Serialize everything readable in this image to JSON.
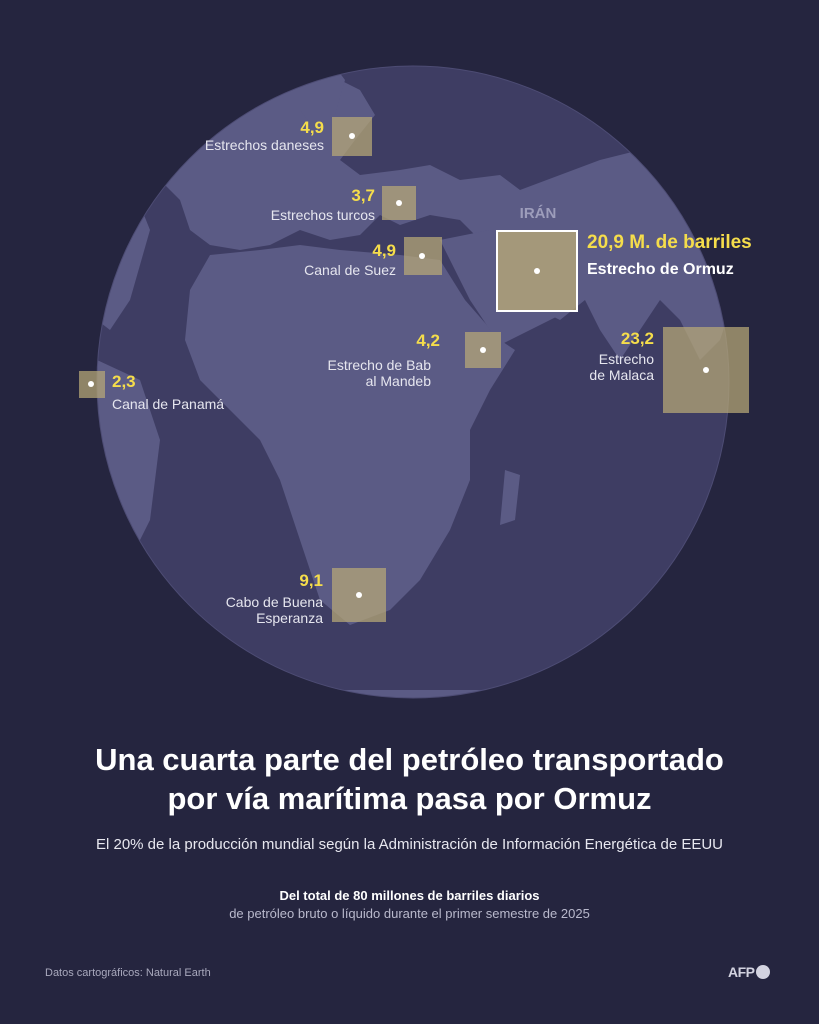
{
  "map": {
    "country_label": "IRÁN",
    "colors": {
      "background": "#25253f",
      "ocean": "#3e3d63",
      "land": "#5b5b85",
      "box": "#b8a977",
      "value": "#f5dd4b"
    },
    "chokepoints": [
      {
        "id": "danish-straits",
        "value": "4,9",
        "name": [
          "Estrechos daneses"
        ]
      },
      {
        "id": "turkish-straits",
        "value": "3,7",
        "name": [
          "Estrechos turcos"
        ]
      },
      {
        "id": "suez-canal",
        "value": "4,9",
        "name": [
          "Canal de Suez"
        ]
      },
      {
        "id": "hormuz-strait",
        "value": "20,9 M. de barriles",
        "name": [
          "Estrecho de Ormuz"
        ]
      },
      {
        "id": "bab-el-mandeb",
        "value": "4,2",
        "name": [
          "Estrecho de Bab",
          "al Mandeb"
        ]
      },
      {
        "id": "malacca-strait",
        "value": "23,2",
        "name": [
          "Estrecho",
          "de Malaca"
        ]
      },
      {
        "id": "panama-canal",
        "value": "2,3",
        "name": [
          "Canal de Panamá"
        ]
      },
      {
        "id": "cape-of-good-hope",
        "value": "9,1",
        "name": [
          "Cabo de Buena",
          "Esperanza"
        ]
      }
    ]
  },
  "title_lines": [
    "Una cuarta parte del petróleo transportado",
    "por vía marítima pasa por Ormuz"
  ],
  "subtitle": "El 20% de la producción mundial según la Administración de Información Energética de EEUU",
  "note": {
    "bold": "Del total de 80 millones de barriles diarios",
    "regular": "de petróleo bruto o líquido durante el primer semestre de 2025"
  },
  "credit": "Datos cartográficos: Natural Earth",
  "logo": "AFP"
}
